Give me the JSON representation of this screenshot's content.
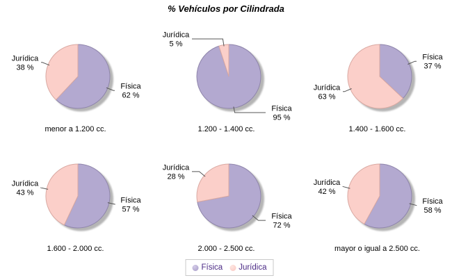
{
  "title": "% Vehículos por Cilindrada",
  "colors": {
    "background": "#ffffff",
    "fisica": "#b3a9d0",
    "fisica_stroke": "#8f85ab",
    "juridica": "#fbcfc9",
    "juridica_stroke": "#d9a9a2",
    "shadow": "#a3a3a3",
    "leader": "#555555",
    "text": "#000000",
    "legend_text": "#4b2a85",
    "legend_border": "#c9c9c9"
  },
  "legend": {
    "position": "bottom",
    "items": [
      {
        "label": "Física",
        "color": "#b3a9d0"
      },
      {
        "label": "Jurídica",
        "color": "#fbcfc9"
      }
    ]
  },
  "chart_data": {
    "type": "pie",
    "title": "% Vehículos por Cilindrada",
    "series_labels": [
      "Física",
      "Jurídica"
    ],
    "legend_position": "bottom",
    "charts": [
      {
        "category": "menor a 1.200 cc.",
        "slices": [
          {
            "name": "Física",
            "value": 62,
            "pct_label": "62 %"
          },
          {
            "name": "Jurídica",
            "value": 38,
            "pct_label": "38 %"
          }
        ]
      },
      {
        "category": "1.200 - 1.400 cc.",
        "slices": [
          {
            "name": "Física",
            "value": 95,
            "pct_label": "95 %"
          },
          {
            "name": "Jurídica",
            "value": 5,
            "pct_label": "5 %"
          }
        ]
      },
      {
        "category": "1.400 - 1.600 cc.",
        "slices": [
          {
            "name": "Física",
            "value": 37,
            "pct_label": "37 %"
          },
          {
            "name": "Jurídica",
            "value": 63,
            "pct_label": "63 %"
          }
        ]
      },
      {
        "category": "1.600 - 2.000 cc.",
        "slices": [
          {
            "name": "Física",
            "value": 57,
            "pct_label": "57 %"
          },
          {
            "name": "Jurídica",
            "value": 43,
            "pct_label": "43 %"
          }
        ]
      },
      {
        "category": "2.000 - 2.500 cc.",
        "slices": [
          {
            "name": "Física",
            "value": 72,
            "pct_label": "72 %"
          },
          {
            "name": "Jurídica",
            "value": 28,
            "pct_label": "28 %"
          }
        ]
      },
      {
        "category": "mayor o igual a 2.500 cc.",
        "slices": [
          {
            "name": "Física",
            "value": 58,
            "pct_label": "58 %"
          },
          {
            "name": "Jurídica",
            "value": 42,
            "pct_label": "42 %"
          }
        ]
      }
    ]
  }
}
